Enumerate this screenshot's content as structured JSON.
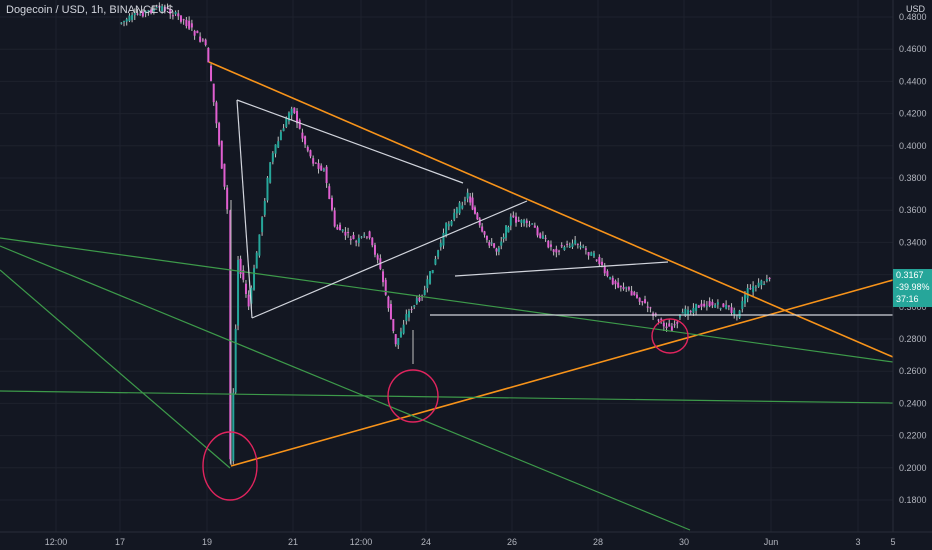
{
  "header": {
    "title": "Dogecoin / USD, 1h, BINANCEUS",
    "currency": "USD"
  },
  "price_tag": {
    "price": "0.3167",
    "change": "-39.98%",
    "countdown": "37:16"
  },
  "colors": {
    "background": "#131722",
    "up_candle": "#26a69a",
    "down_candle": "#e05fd0",
    "wick": "#c0c0c0",
    "orange_line": "#f7931a",
    "green_line": "#3d9a4a",
    "white_line": "#d1d4dc",
    "circle": "#e0245e",
    "axis_text": "#b2b5be"
  },
  "chart_data": {
    "type": "candlestick",
    "y_axis_labels": [
      "0.4800",
      "0.4600",
      "0.4400",
      "0.4200",
      "0.4000",
      "0.3800",
      "0.3600",
      "0.3400",
      "0.3200",
      "0.3000",
      "0.2800",
      "0.2600",
      "0.2400",
      "0.2200",
      "0.2000",
      "0.1800"
    ],
    "y_range": [
      0.172,
      0.484
    ],
    "x_axis_labels": [
      "12:00",
      "17",
      "19",
      "21",
      "12:00",
      "24",
      "26",
      "28",
      "30",
      "Jun",
      "3",
      "5"
    ],
    "price_path": [
      [
        "17",
        0.476
      ],
      [
        "17 12:00",
        0.482
      ],
      [
        "18",
        0.486
      ],
      [
        "18 12:00",
        0.478
      ],
      [
        "19",
        0.462
      ],
      [
        "19 06:00",
        0.415
      ],
      [
        "19 12:00",
        0.36
      ],
      [
        "19 14:00",
        0.205
      ],
      [
        "19 18:00",
        0.33
      ],
      [
        "20",
        0.3
      ],
      [
        "20 12:00",
        0.39
      ],
      [
        "21",
        0.425
      ],
      [
        "21 06:00",
        0.405
      ],
      [
        "21 12:00",
        0.39
      ],
      [
        "21 18:00",
        0.385
      ],
      [
        "22",
        0.35
      ],
      [
        "22 12:00",
        0.34
      ],
      [
        "22 18:00",
        0.345
      ],
      [
        "23",
        0.33
      ],
      [
        "23 06:00",
        0.3
      ],
      [
        "23 10:00",
        0.276
      ],
      [
        "23 16:00",
        0.295
      ],
      [
        "24",
        0.31
      ],
      [
        "24 12:00",
        0.35
      ],
      [
        "25",
        0.37
      ],
      [
        "25 08:00",
        0.345
      ],
      [
        "25 16:00",
        0.335
      ],
      [
        "26",
        0.355
      ],
      [
        "26 12:00",
        0.35
      ],
      [
        "27",
        0.335
      ],
      [
        "27 12:00",
        0.34
      ],
      [
        "28",
        0.33
      ],
      [
        "28 06:00",
        0.318
      ],
      [
        "28 18:00",
        0.31
      ],
      [
        "29",
        0.305
      ],
      [
        "29 12:00",
        0.29
      ],
      [
        "29 18:00",
        0.287
      ],
      [
        "30",
        0.296
      ],
      [
        "30 12:00",
        0.302
      ],
      [
        "31",
        0.3
      ],
      [
        "31 06:00",
        0.295
      ],
      [
        "31 12:00",
        0.31
      ],
      [
        "Jun",
        0.3167
      ]
    ]
  }
}
